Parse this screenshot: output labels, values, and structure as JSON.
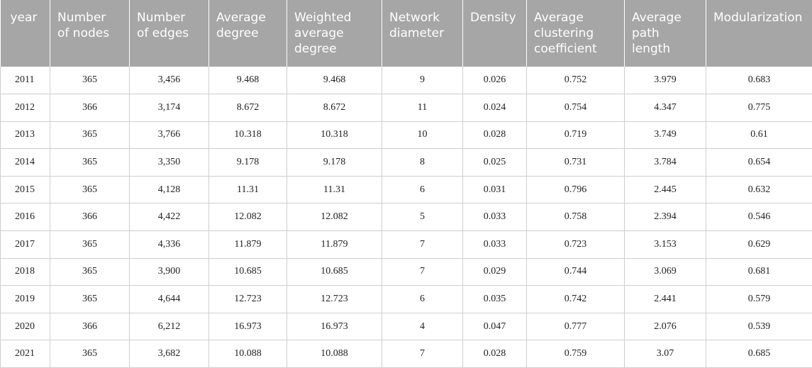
{
  "table": {
    "headers": [
      "year",
      "Number\nof nodes",
      "Number\nof edges",
      "Average\ndegree",
      "Weighted\naverage\ndegree",
      "Network\ndiameter",
      "Density",
      "Average\nclustering\ncoefficient",
      "Average\npath\nlength",
      "Modularization"
    ],
    "rows": [
      [
        "2011",
        "365",
        "3,456",
        "9.468",
        "9.468",
        "9",
        "0.026",
        "0.752",
        "3.979",
        "0.683"
      ],
      [
        "2012",
        "366",
        "3,174",
        "8.672",
        "8.672",
        "11",
        "0.024",
        "0.754",
        "4.347",
        "0.775"
      ],
      [
        "2013",
        "365",
        "3,766",
        "10.318",
        "10.318",
        "10",
        "0.028",
        "0.719",
        "3.749",
        "0.61"
      ],
      [
        "2014",
        "365",
        "3,350",
        "9.178",
        "9.178",
        "8",
        "0.025",
        "0.731",
        "3.784",
        "0.654"
      ],
      [
        "2015",
        "365",
        "4,128",
        "11.31",
        "11.31",
        "6",
        "0.031",
        "0.796",
        "2.445",
        "0.632"
      ],
      [
        "2016",
        "366",
        "4,422",
        "12.082",
        "12.082",
        "5",
        "0.033",
        "0.758",
        "2.394",
        "0.546"
      ],
      [
        "2017",
        "365",
        "4,336",
        "11.879",
        "11.879",
        "7",
        "0.033",
        "0.723",
        "3.153",
        "0.629"
      ],
      [
        "2018",
        "365",
        "3,900",
        "10.685",
        "10.685",
        "7",
        "0.029",
        "0.744",
        "3.069",
        "0.681"
      ],
      [
        "2019",
        "365",
        "4,644",
        "12.723",
        "12.723",
        "6",
        "0.035",
        "0.742",
        "2.441",
        "0.579"
      ],
      [
        "2020",
        "366",
        "6,212",
        "16.973",
        "16.973",
        "4",
        "0.047",
        "0.777",
        "2.076",
        "0.539"
      ],
      [
        "2021",
        "365",
        "3,682",
        "10.088",
        "10.088",
        "7",
        "0.028",
        "0.759",
        "3.07",
        "0.685"
      ]
    ]
  },
  "colors": {
    "header_background": "#a6a6a6",
    "header_text": "#ffffff",
    "grid_line": "#cfcfcf"
  }
}
